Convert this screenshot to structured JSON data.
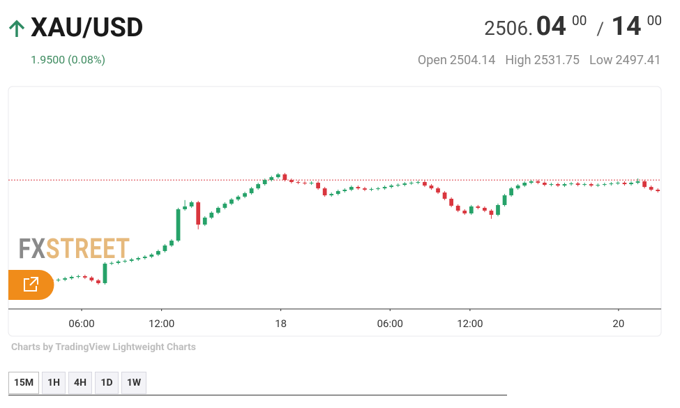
{
  "header": {
    "symbol": "XAU/USD",
    "change": "1.9500 (0.08%)",
    "bid_main": "2506.",
    "bid_big": "04",
    "bid_small": "00",
    "separator": "/",
    "ask_big": "14",
    "ask_small": "00",
    "stats": [
      {
        "label": "Open",
        "value": "2504.14"
      },
      {
        "label": "High",
        "value": "2531.75"
      },
      {
        "label": "Low",
        "value": "2497.41"
      }
    ]
  },
  "chart_data": {
    "type": "candlestick",
    "watermark": [
      "FX",
      "STREET"
    ],
    "attribution": "Charts by TradingView Lightweight Charts",
    "up_color": "#26a269",
    "down_color": "#d9363e",
    "price_line": 2508.03,
    "price_line_color": "#d9363e",
    "xlim": [
      -0.5,
      97.5
    ],
    "ylim": [
      2486,
      2524
    ],
    "xticks": [
      {
        "value": 10.5,
        "label": "06:00"
      },
      {
        "value": 22.5,
        "label": "12:00"
      },
      {
        "value": 40.4,
        "label": "18"
      },
      {
        "value": 56.8,
        "label": "06:00"
      },
      {
        "value": 68.8,
        "label": "12:00"
      },
      {
        "value": 91.1,
        "label": "20"
      }
    ],
    "x": [
      0,
      1,
      2,
      3,
      4,
      5,
      6,
      7,
      8,
      9,
      10,
      11,
      12,
      13,
      14,
      15,
      16,
      17,
      18,
      19,
      20,
      21,
      22,
      23,
      24,
      25,
      26,
      27,
      28,
      29,
      30,
      31,
      32,
      33,
      34,
      35,
      36,
      37,
      38,
      39,
      40,
      41,
      42,
      43,
      44,
      45,
      46,
      47,
      48,
      49,
      50,
      51,
      52,
      53,
      54,
      55,
      56,
      57,
      58,
      59,
      60,
      61,
      62,
      63,
      64,
      65,
      66,
      67,
      68,
      69,
      70,
      71,
      72,
      73,
      74,
      75,
      76,
      77,
      78,
      79,
      80,
      81,
      82,
      83,
      84,
      85,
      86,
      87,
      88,
      89,
      90,
      91,
      92,
      93,
      94,
      95,
      96,
      97
    ],
    "open": [
      2491.8,
      2492.07,
      2491.84,
      2491.6,
      2491.36,
      2491.12,
      2491.0,
      2490.88,
      2491.0,
      2491.24,
      2491.48,
      2491.6,
      2491.36,
      2490.88,
      2490.41,
      2493.74,
      2493.86,
      2494.1,
      2494.22,
      2494.46,
      2494.69,
      2494.93,
      2495.29,
      2495.89,
      2496.84,
      2497.67,
      2503.03,
      2503.51,
      2504.22,
      2500.41,
      2501.6,
      2502.44,
      2503.27,
      2503.98,
      2504.7,
      2505.18,
      2505.77,
      2506.6,
      2507.32,
      2508.03,
      2508.51,
      2508.99,
      2508.03,
      2507.68,
      2507.56,
      2507.44,
      2507.56,
      2506.6,
      2505.41,
      2505.65,
      2506.13,
      2506.37,
      2506.84,
      2506.6,
      2506.37,
      2506.49,
      2506.6,
      2506.84,
      2507.08,
      2507.2,
      2507.44,
      2507.56,
      2507.68,
      2507.08,
      2506.6,
      2505.89,
      2504.82,
      2503.63,
      2502.79,
      2502.32,
      2503.51,
      2503.27,
      2502.79,
      2502.08,
      2503.75,
      2505.41,
      2506.6,
      2507.08,
      2507.56,
      2507.8,
      2507.56,
      2507.2,
      2507.32,
      2507.08,
      2507.32,
      2507.44,
      2507.2,
      2507.32,
      2507.08,
      2507.2,
      2507.32,
      2507.44,
      2507.56,
      2507.32,
      2507.56,
      2507.8,
      2506.84,
      2506.37
    ],
    "high": [
      2492.32,
      2492.32,
      2492.09,
      2491.85,
      2491.61,
      2491.37,
      2491.25,
      2491.25,
      2491.49,
      2491.73,
      2491.85,
      2491.85,
      2491.61,
      2491.13,
      2493.99,
      2494.11,
      2494.35,
      2494.47,
      2494.71,
      2494.94,
      2495.18,
      2495.54,
      2496.14,
      2497.09,
      2497.92,
      2503.28,
      2504.6,
      2504.47,
      2504.47,
      2501.85,
      2502.69,
      2503.52,
      2504.23,
      2504.95,
      2505.43,
      2506.02,
      2506.85,
      2507.57,
      2508.28,
      2508.76,
      2509.24,
      2509.24,
      2508.28,
      2507.93,
      2507.81,
      2507.81,
      2507.81,
      2506.85,
      2505.9,
      2506.38,
      2506.62,
      2507.09,
      2507.09,
      2506.85,
      2506.74,
      2506.85,
      2507.09,
      2507.33,
      2507.45,
      2507.69,
      2507.81,
      2507.93,
      2507.93,
      2507.33,
      2506.85,
      2506.14,
      2505.07,
      2503.88,
      2503.04,
      2503.76,
      2503.76,
      2503.52,
      2503.04,
      2504.0,
      2505.66,
      2506.85,
      2507.33,
      2507.81,
      2508.05,
      2508.05,
      2507.81,
      2507.57,
      2507.57,
      2507.57,
      2507.69,
      2507.69,
      2507.57,
      2507.57,
      2507.45,
      2507.57,
      2507.69,
      2507.81,
      2507.81,
      2507.81,
      2508.3,
      2508.05,
      2507.09,
      2506.62
    ],
    "low": [
      2491.55,
      2491.59,
      2491.35,
      2491.11,
      2490.87,
      2490.75,
      2490.63,
      2490.63,
      2490.75,
      2490.99,
      2491.23,
      2491.11,
      2490.63,
      2490.16,
      2490.16,
      2493.49,
      2493.61,
      2493.85,
      2493.97,
      2494.21,
      2494.44,
      2494.68,
      2495.04,
      2495.64,
      2496.59,
      2497.42,
      2502.78,
      2503.26,
      2499.6,
      2500.16,
      2501.35,
      2502.19,
      2503.02,
      2503.73,
      2504.45,
      2504.93,
      2505.52,
      2506.35,
      2507.07,
      2507.78,
      2508.26,
      2507.78,
      2507.43,
      2507.31,
      2507.19,
      2507.19,
      2506.35,
      2505.16,
      2505.16,
      2505.4,
      2505.88,
      2506.12,
      2506.35,
      2506.12,
      2506.12,
      2506.24,
      2506.35,
      2506.59,
      2506.83,
      2506.95,
      2507.19,
      2507.31,
      2506.83,
      2506.35,
      2505.64,
      2504.57,
      2503.38,
      2502.54,
      2502.07,
      2502.07,
      2503.02,
      2502.54,
      2501.4,
      2501.83,
      2503.5,
      2505.16,
      2506.35,
      2506.83,
      2507.31,
      2507.31,
      2506.95,
      2506.95,
      2506.83,
      2506.83,
      2507.07,
      2506.95,
      2506.95,
      2506.83,
      2506.83,
      2506.95,
      2507.07,
      2507.19,
      2507.07,
      2507.07,
      2507.31,
      2506.59,
      2506.12,
      2505.88
    ],
    "close": [
      2492.07,
      2491.84,
      2491.6,
      2491.36,
      2491.12,
      2491.0,
      2490.88,
      2491.0,
      2491.24,
      2491.48,
      2491.6,
      2491.36,
      2490.88,
      2490.41,
      2493.74,
      2493.86,
      2494.1,
      2494.22,
      2494.46,
      2494.69,
      2494.93,
      2495.29,
      2495.89,
      2496.84,
      2497.67,
      2503.03,
      2503.51,
      2504.22,
      2500.41,
      2501.6,
      2502.44,
      2503.27,
      2503.98,
      2504.7,
      2505.18,
      2505.77,
      2506.6,
      2507.32,
      2508.03,
      2508.51,
      2508.99,
      2508.03,
      2507.68,
      2507.56,
      2507.44,
      2507.56,
      2506.6,
      2505.41,
      2505.65,
      2506.13,
      2506.37,
      2506.84,
      2506.6,
      2506.37,
      2506.49,
      2506.6,
      2506.84,
      2507.08,
      2507.2,
      2507.44,
      2507.56,
      2507.68,
      2507.08,
      2506.6,
      2505.89,
      2504.82,
      2503.63,
      2502.79,
      2502.32,
      2503.51,
      2503.27,
      2502.79,
      2502.08,
      2503.75,
      2505.41,
      2506.6,
      2507.08,
      2507.56,
      2507.8,
      2507.56,
      2507.2,
      2507.32,
      2507.08,
      2507.32,
      2507.44,
      2507.2,
      2507.32,
      2507.08,
      2507.2,
      2507.32,
      2507.44,
      2507.56,
      2507.32,
      2507.56,
      2507.8,
      2506.84,
      2506.37,
      2506.13
    ]
  },
  "timeframes": [
    "15M",
    "1H",
    "4H",
    "1D",
    "1W"
  ]
}
